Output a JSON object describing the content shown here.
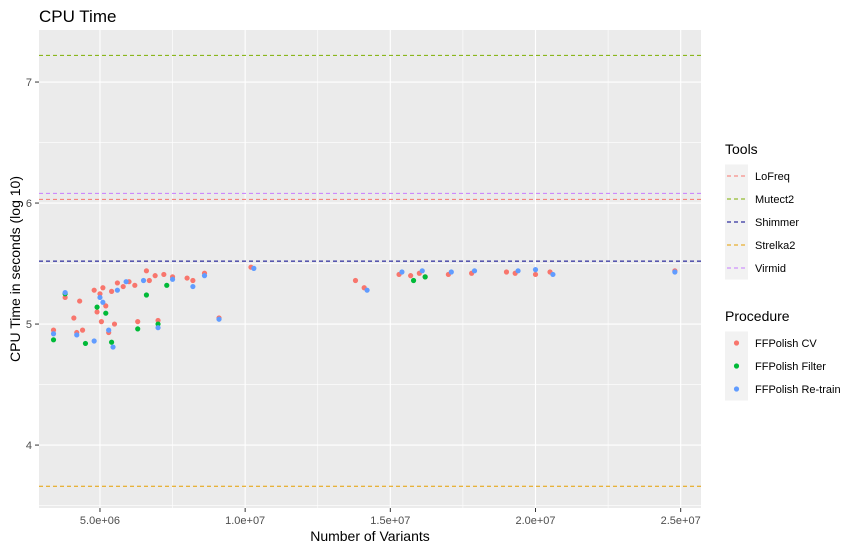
{
  "chart_data": {
    "type": "scatter",
    "title": "CPU Time",
    "xlabel": "Number of Variants",
    "ylabel": "CPU Time in seconds (log 10)",
    "xlim": [
      2900000,
      25700000
    ],
    "ylim": [
      3.48,
      7.43
    ],
    "grid": true,
    "x_ticks": [
      {
        "value": 5000000,
        "label": "5.0e+06"
      },
      {
        "value": 10000000,
        "label": "1.0e+07"
      },
      {
        "value": 15000000,
        "label": "1.5e+07"
      },
      {
        "value": 20000000,
        "label": "2.0e+07"
      },
      {
        "value": 25000000,
        "label": "2.5e+07"
      }
    ],
    "y_ticks": [
      {
        "value": 4,
        "label": "4"
      },
      {
        "value": 5,
        "label": "5"
      },
      {
        "value": 6,
        "label": "6"
      },
      {
        "value": 7,
        "label": "7"
      }
    ],
    "reference_lines": [
      {
        "name": "LoFreq",
        "y": 6.03,
        "color": "#F8766D"
      },
      {
        "name": "Mutect2",
        "y": 7.22,
        "color": "#7CAE00"
      },
      {
        "name": "Shimmer",
        "y": 5.52,
        "color": "#00008B"
      },
      {
        "name": "Strelka2",
        "y": 3.66,
        "color": "#E69F00"
      },
      {
        "name": "Virmid",
        "y": 6.08,
        "color": "#C77CFF"
      }
    ],
    "series": [
      {
        "name": "FFPolish CV",
        "color": "#F8766D",
        "points": [
          [
            3400000,
            4.95
          ],
          [
            3800000,
            5.22
          ],
          [
            4100000,
            5.05
          ],
          [
            4200000,
            4.93
          ],
          [
            4300000,
            5.19
          ],
          [
            4400000,
            4.95
          ],
          [
            4800000,
            5.28
          ],
          [
            4900000,
            5.1
          ],
          [
            5000000,
            5.25
          ],
          [
            5050000,
            5.02
          ],
          [
            5100000,
            5.3
          ],
          [
            5200000,
            5.15
          ],
          [
            5300000,
            4.93
          ],
          [
            5400000,
            5.27
          ],
          [
            5500000,
            5.0
          ],
          [
            5600000,
            5.34
          ],
          [
            5800000,
            5.31
          ],
          [
            6000000,
            5.35
          ],
          [
            6200000,
            5.32
          ],
          [
            6300000,
            5.02
          ],
          [
            6600000,
            5.44
          ],
          [
            6700000,
            5.36
          ],
          [
            6900000,
            5.4
          ],
          [
            7000000,
            5.03
          ],
          [
            7200000,
            5.41
          ],
          [
            7500000,
            5.39
          ],
          [
            8000000,
            5.38
          ],
          [
            8200000,
            5.36
          ],
          [
            8600000,
            5.42
          ],
          [
            9100000,
            5.05
          ],
          [
            10200000,
            5.47
          ],
          [
            13800000,
            5.36
          ],
          [
            14100000,
            5.3
          ],
          [
            15300000,
            5.41
          ],
          [
            15700000,
            5.4
          ],
          [
            16000000,
            5.42
          ],
          [
            16200000,
            5.39
          ],
          [
            17000000,
            5.41
          ],
          [
            17800000,
            5.42
          ],
          [
            19000000,
            5.43
          ],
          [
            19300000,
            5.42
          ],
          [
            20000000,
            5.41
          ],
          [
            20500000,
            5.43
          ],
          [
            24800000,
            5.44
          ]
        ]
      },
      {
        "name": "FFPolish Filter",
        "color": "#00BA38",
        "points": [
          [
            3400000,
            4.87
          ],
          [
            3800000,
            5.25
          ],
          [
            4500000,
            4.84
          ],
          [
            4900000,
            5.14
          ],
          [
            5200000,
            5.09
          ],
          [
            5400000,
            4.85
          ],
          [
            6300000,
            4.96
          ],
          [
            6600000,
            5.24
          ],
          [
            7000000,
            5.0
          ],
          [
            7300000,
            5.32
          ],
          [
            15800000,
            5.36
          ],
          [
            16200000,
            5.39
          ]
        ]
      },
      {
        "name": "FFPolish Re-train",
        "color": "#619CFF",
        "points": [
          [
            3400000,
            4.92
          ],
          [
            3800000,
            5.26
          ],
          [
            4200000,
            4.91
          ],
          [
            4800000,
            4.86
          ],
          [
            5000000,
            5.22
          ],
          [
            5100000,
            5.18
          ],
          [
            5300000,
            4.95
          ],
          [
            5450000,
            4.81
          ],
          [
            5600000,
            5.28
          ],
          [
            5900000,
            5.35
          ],
          [
            6500000,
            5.36
          ],
          [
            7000000,
            4.97
          ],
          [
            7500000,
            5.37
          ],
          [
            8200000,
            5.31
          ],
          [
            8600000,
            5.4
          ],
          [
            9100000,
            5.04
          ],
          [
            10300000,
            5.46
          ],
          [
            14200000,
            5.28
          ],
          [
            15400000,
            5.43
          ],
          [
            16100000,
            5.44
          ],
          [
            17100000,
            5.43
          ],
          [
            17900000,
            5.44
          ],
          [
            19400000,
            5.44
          ],
          [
            20000000,
            5.45
          ],
          [
            20600000,
            5.41
          ],
          [
            24800000,
            5.43
          ]
        ]
      }
    ],
    "legends": [
      {
        "title": "Tools",
        "type": "dashed-line",
        "entries": [
          "LoFreq",
          "Mutect2",
          "Shimmer",
          "Strelka2",
          "Virmid"
        ]
      },
      {
        "title": "Procedure",
        "type": "point",
        "entries": [
          "FFPolish CV",
          "FFPolish Filter",
          "FFPolish Re-train"
        ]
      }
    ]
  }
}
